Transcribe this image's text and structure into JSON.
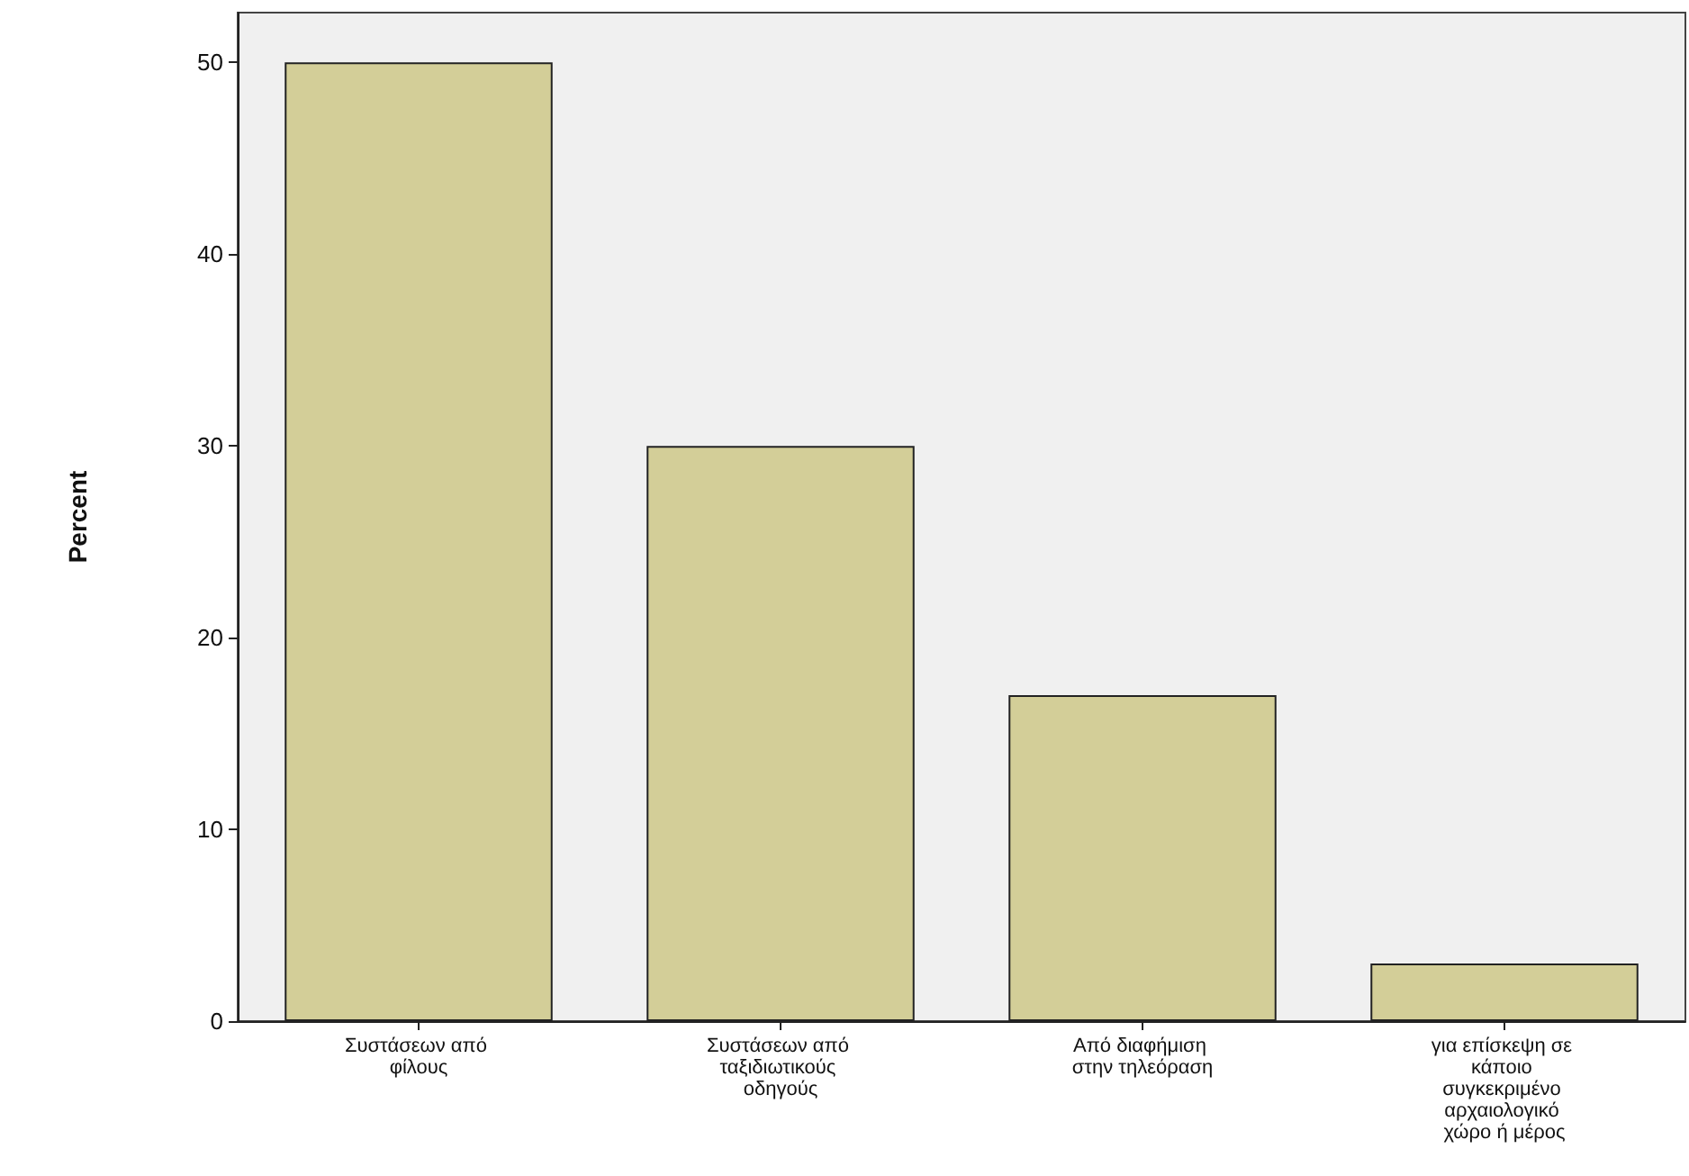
{
  "chart_data": {
    "type": "bar",
    "ylabel": "Percent",
    "categories": [
      "Συστάσεων από φίλους",
      "Συστάσεων από ταξιδιωτικούς οδηγούς",
      "Από διαφήμιση στην τηλεόραση",
      "για επίσκεψη σε κάποιο συγκεκριμένο αρχαιολογικό χώρο ή μέρος"
    ],
    "values": [
      50,
      30,
      17,
      3
    ],
    "color": "#d3ce98",
    "ylim": [
      0,
      52.6
    ],
    "yticks": [
      0,
      10,
      20,
      30,
      40,
      50
    ],
    "grid": false
  }
}
